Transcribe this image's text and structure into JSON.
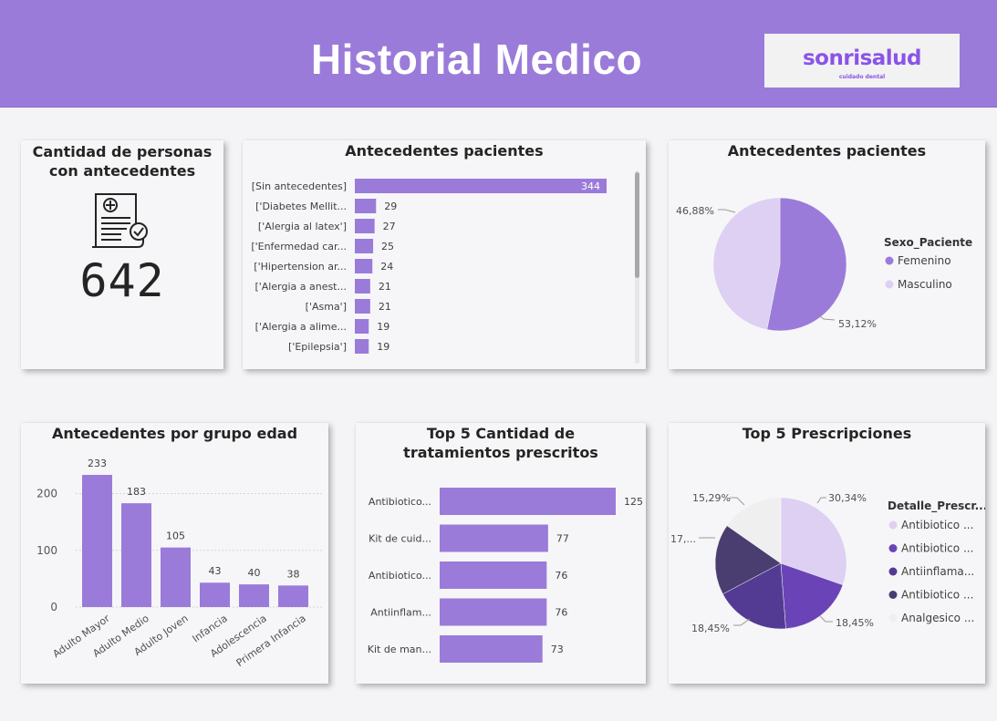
{
  "header": {
    "title": "Historial Medico",
    "logo_text": "sonrisalud",
    "logo_subtext": "cuidado dental"
  },
  "colors": {
    "header_bg": "#9b7bd9",
    "bar": "#9b7bd9",
    "pie_femenino": "#9b7bd9",
    "pie_masculino": "#ddd0f3",
    "rx_colors": [
      "#ddd0f3",
      "#6a44b6",
      "#533b94",
      "#4a3d70",
      "#efefef"
    ]
  },
  "kpi": {
    "title": "Cantidad de personas con antecedentes",
    "icon": "prescription-document-icon",
    "value": "642"
  },
  "chart_data": [
    {
      "type": "bar",
      "orientation": "horizontal",
      "title": "Antecedentes pacientes",
      "categories": [
        "[Sin antecedentes]",
        "['Diabetes Mellit...",
        "['Alergia al latex']",
        "['Enfermedad car...",
        "['Hipertension ar...",
        "['Alergia a anest...",
        "['Asma']",
        "['Alergia a alime...",
        "['Epilepsia']"
      ],
      "values": [
        344,
        29,
        27,
        25,
        24,
        21,
        21,
        19,
        19
      ],
      "xlim": [
        0,
        344
      ]
    },
    {
      "type": "pie",
      "title": "Antecedentes pacientes",
      "legend_title": "Sexo_Paciente",
      "legend_position": "right",
      "labels": [
        "Femenino",
        "Masculino"
      ],
      "values": [
        53.12,
        46.88
      ],
      "data_labels": [
        "53,12%",
        "46,88%"
      ]
    },
    {
      "type": "bar",
      "orientation": "vertical",
      "title": "Antecedentes por grupo edad",
      "categories": [
        "Adulto Mayor",
        "Adulto Medio",
        "Adulto Joven",
        "Infancia",
        "Adolescencia",
        "Primera Infancia"
      ],
      "values": [
        233,
        183,
        105,
        43,
        40,
        38
      ],
      "yticks": [
        "0",
        "100",
        "200"
      ],
      "ylim": [
        0,
        250
      ],
      "grid": true
    },
    {
      "type": "bar",
      "orientation": "horizontal",
      "title": "Top 5 Cantidad de tratamientos prescritos",
      "categories": [
        "Antibiotico...",
        "Kit de cuid...",
        "Antibiotico...",
        "Antiinflam...",
        "Kit de man..."
      ],
      "values": [
        125,
        77,
        76,
        76,
        73
      ],
      "xlim": [
        0,
        125
      ]
    },
    {
      "type": "pie",
      "title": "Top 5 Prescripciones",
      "legend_title": "Detalle_Prescr...",
      "legend_position": "right",
      "labels": [
        "Antibiotico ...",
        "Antibiotico ...",
        "Antiinflama...",
        "Antibiotico ...",
        "Analgesico ..."
      ],
      "values": [
        30.34,
        18.45,
        18.45,
        17.47,
        15.29
      ],
      "data_labels": [
        "30,34%",
        "18,45%",
        "18,45%",
        "17,...",
        "15,29%"
      ]
    }
  ]
}
